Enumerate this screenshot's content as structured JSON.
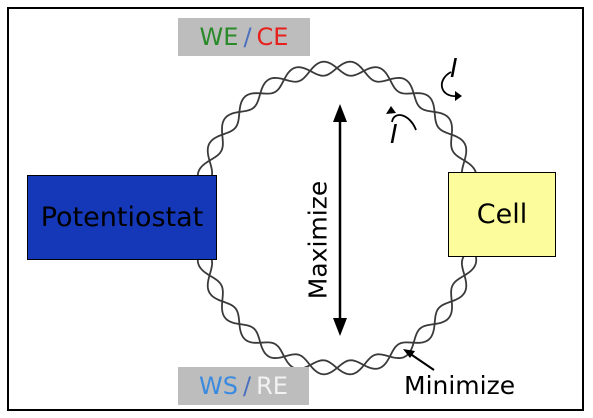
{
  "tags": {
    "top": {
      "we": "WE",
      "separator": "/",
      "ce": "CE"
    },
    "bottom": {
      "ws": "WS",
      "separator": "/",
      "re": "RE"
    }
  },
  "boxes": {
    "potentiostat": "Potentiostat",
    "cell": "Cell"
  },
  "labels": {
    "maximize": "Maximize",
    "minimize": "Minimize",
    "current_top": "I",
    "current_mid": "I"
  },
  "colors": {
    "potentiostat": "#1438b8",
    "cell": "#fcfc9c",
    "we": "#2a8a2a",
    "ce": "#e8201c",
    "ws": "#3a8ae0",
    "re": "#f2f2f2",
    "tag_background": "#bdbdbd"
  }
}
